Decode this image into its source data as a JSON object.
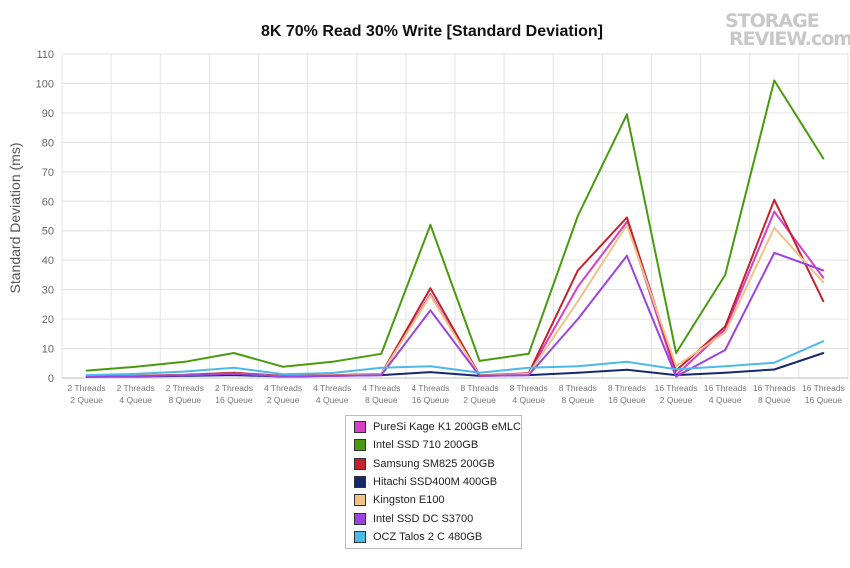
{
  "logo": {
    "line1": "STORAGE",
    "line2": "REVIEW.com"
  },
  "chart_data": {
    "type": "line",
    "title": "8K 70% Read 30% Write [Standard Deviation]",
    "ylabel": "Standard Deviation (ms)",
    "xlabel": "",
    "ylim": [
      0,
      110
    ],
    "yticks": [
      0,
      10,
      20,
      30,
      40,
      50,
      60,
      70,
      80,
      90,
      100,
      110
    ],
    "grid": true,
    "legend_position": "bottom-center",
    "categories": [
      [
        "2 Threads",
        "2 Queue"
      ],
      [
        "2 Threads",
        "4 Queue"
      ],
      [
        "2 Threads",
        "8 Queue"
      ],
      [
        "2 Threads",
        "16 Queue"
      ],
      [
        "4 Threads",
        "2 Queue"
      ],
      [
        "4 Threads",
        "4 Queue"
      ],
      [
        "4 Threads",
        "8 Queue"
      ],
      [
        "4 Threads",
        "16 Queue"
      ],
      [
        "8 Threads",
        "2 Queue"
      ],
      [
        "8 Threads",
        "4 Queue"
      ],
      [
        "8 Threads",
        "8 Queue"
      ],
      [
        "8 Threads",
        "16 Queue"
      ],
      [
        "16 Threads",
        "2 Queue"
      ],
      [
        "16 Threads",
        "4 Queue"
      ],
      [
        "16 Threads",
        "8 Queue"
      ],
      [
        "16 Threads",
        "16 Queue"
      ]
    ],
    "series": [
      {
        "name": "PureSi Kage K1 200GB eMLC",
        "color": "#d63fc6",
        "values": [
          0.5,
          0.7,
          1.0,
          1.6,
          0.6,
          0.8,
          1.3,
          28.5,
          0.8,
          1.5,
          31.0,
          53.0,
          1.0,
          16.5,
          56.5,
          34.0
        ]
      },
      {
        "name": "Intel SSD 710 200GB",
        "color": "#4a9a0e",
        "values": [
          2.5,
          3.8,
          5.5,
          8.5,
          3.8,
          5.5,
          8.2,
          52.0,
          5.8,
          8.2,
          55.0,
          89.5,
          8.5,
          35.0,
          101.0,
          74.5
        ]
      },
      {
        "name": "Samsung SM825 200GB",
        "color": "#c4212b",
        "values": [
          0.6,
          0.8,
          1.1,
          1.8,
          0.7,
          0.9,
          1.4,
          30.5,
          0.9,
          1.6,
          36.5,
          54.5,
          2.5,
          17.5,
          60.5,
          26.0
        ]
      },
      {
        "name": "Hitachi SSD400M 400GB",
        "color": "#152a6e",
        "values": [
          0.4,
          0.5,
          0.7,
          1.0,
          0.5,
          0.7,
          1.0,
          2.0,
          0.7,
          1.0,
          1.8,
          2.8,
          1.0,
          1.8,
          2.9,
          8.5
        ]
      },
      {
        "name": "Kingston E100",
        "color": "#efc286",
        "values": [
          0.5,
          0.7,
          1.0,
          1.5,
          0.6,
          0.8,
          1.3,
          28.0,
          0.8,
          1.4,
          26.0,
          52.0,
          4.0,
          15.5,
          51.0,
          32.5
        ]
      },
      {
        "name": "Intel SSD DC S3700",
        "color": "#9b44e0",
        "values": [
          0.4,
          0.6,
          0.9,
          1.5,
          0.5,
          0.7,
          1.0,
          23.0,
          0.7,
          1.0,
          20.0,
          41.5,
          0.5,
          9.5,
          42.5,
          36.5
        ]
      },
      {
        "name": "OCZ Talos 2 C 480GB",
        "color": "#4db9e8",
        "values": [
          1.0,
          1.4,
          2.2,
          3.5,
          1.3,
          1.7,
          3.5,
          4.0,
          1.8,
          3.5,
          4.0,
          5.5,
          3.0,
          4.0,
          5.2,
          12.5
        ]
      }
    ]
  }
}
